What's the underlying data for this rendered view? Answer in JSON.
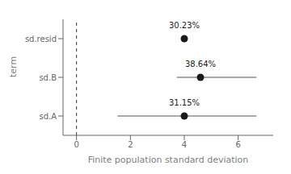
{
  "chart_data": {
    "type": "interval",
    "xlabel": "Finite population standard deviation",
    "ylabel": "term",
    "categories": [
      "sd.resid",
      "sd.B",
      "sd.A"
    ],
    "values": [
      4.0,
      4.6,
      4.0
    ],
    "ci_low": [
      3.88,
      3.72,
      1.52
    ],
    "ci_high": [
      4.12,
      6.68,
      6.68
    ],
    "annotations": [
      {
        "text": "30.23%",
        "x": 4.0,
        "category": "sd.resid"
      },
      {
        "text": "38.64%",
        "x": 4.6,
        "category": "sd.B"
      },
      {
        "text": "31.15%",
        "x": 4.0,
        "category": "sd.A"
      }
    ],
    "reference_lines": [
      {
        "x": 0,
        "line_style": "dashed"
      }
    ],
    "color": "#1a1a1a",
    "xlim": [
      -0.5,
      7.3
    ],
    "xticks": [
      0,
      2,
      4,
      6
    ],
    "grid": false
  }
}
